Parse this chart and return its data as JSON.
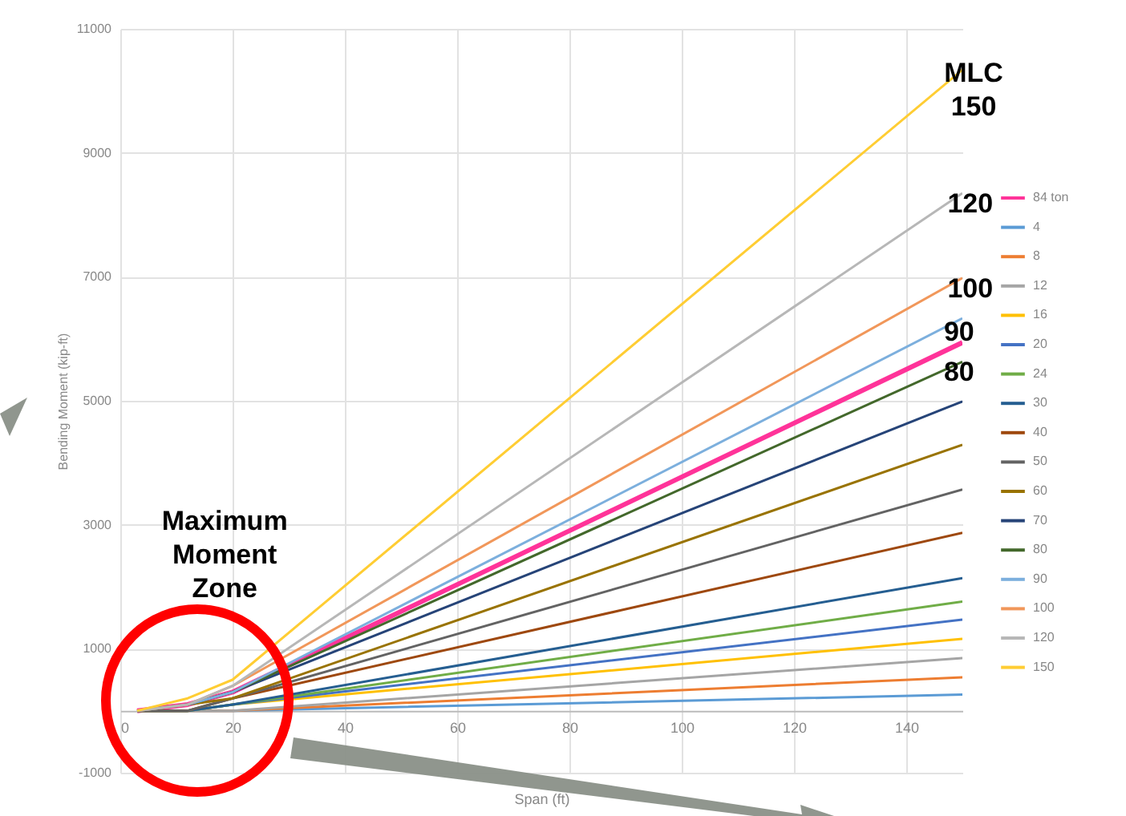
{
  "chart_data": {
    "type": "line",
    "xlabel": "Span (ft)",
    "ylabel": "Bending Moment (kip-ft)",
    "x": [
      3,
      12,
      20,
      150
    ],
    "xlim": [
      0,
      150
    ],
    "xticks": [
      0,
      20,
      40,
      60,
      80,
      100,
      120,
      140
    ],
    "ylim": [
      -1000,
      11000
    ],
    "yticks": [
      -1000,
      1000,
      3000,
      5000,
      7000,
      9000,
      11000
    ],
    "grid": true,
    "legend": "right",
    "marker": "none",
    "line_style": "solid",
    "series": [
      {
        "name": "84 ton",
        "color": "#ff3399",
        "values": [
          0,
          100,
          300,
          5940
        ]
      },
      {
        "name": "4",
        "color": "#5b9bd5",
        "values": [
          0,
          0,
          0,
          260
        ]
      },
      {
        "name": "8",
        "color": "#ed7d31",
        "values": [
          0,
          0,
          0,
          540
        ]
      },
      {
        "name": "12",
        "color": "#a5a5a5",
        "values": [
          0,
          0,
          0,
          850
        ]
      },
      {
        "name": "16",
        "color": "#ffc000",
        "values": [
          0,
          0,
          100,
          1160
        ]
      },
      {
        "name": "20",
        "color": "#4472c4",
        "values": [
          0,
          0,
          100,
          1470
        ]
      },
      {
        "name": "24",
        "color": "#70ad47",
        "values": [
          0,
          0,
          100,
          1760
        ]
      },
      {
        "name": "30",
        "color": "#255e91",
        "values": [
          0,
          0,
          100,
          2140
        ]
      },
      {
        "name": "40",
        "color": "#9e480e",
        "values": [
          0,
          0,
          200,
          2870
        ]
      },
      {
        "name": "50",
        "color": "#636363",
        "values": [
          0,
          0,
          200,
          3570
        ]
      },
      {
        "name": "60",
        "color": "#997300",
        "values": [
          0,
          100,
          200,
          4290
        ]
      },
      {
        "name": "70",
        "color": "#264478",
        "values": [
          0,
          100,
          300,
          4990
        ]
      },
      {
        "name": "80",
        "color": "#43682b",
        "values": [
          0,
          100,
          300,
          5630
        ]
      },
      {
        "name": "90",
        "color": "#7cafdd",
        "values": [
          0,
          100,
          300,
          6330
        ]
      },
      {
        "name": "100",
        "color": "#f1975a",
        "values": [
          0,
          100,
          400,
          6980
        ]
      },
      {
        "name": "120",
        "color": "#b7b7b7",
        "values": [
          0,
          100,
          400,
          8350
        ]
      },
      {
        "name": "150",
        "color": "#ffcd33",
        "values": [
          0,
          200,
          500,
          10340
        ]
      }
    ],
    "annotations": [
      "MLC 150",
      "120",
      "100",
      "90",
      "80",
      "Maximum Moment Zone"
    ]
  }
}
